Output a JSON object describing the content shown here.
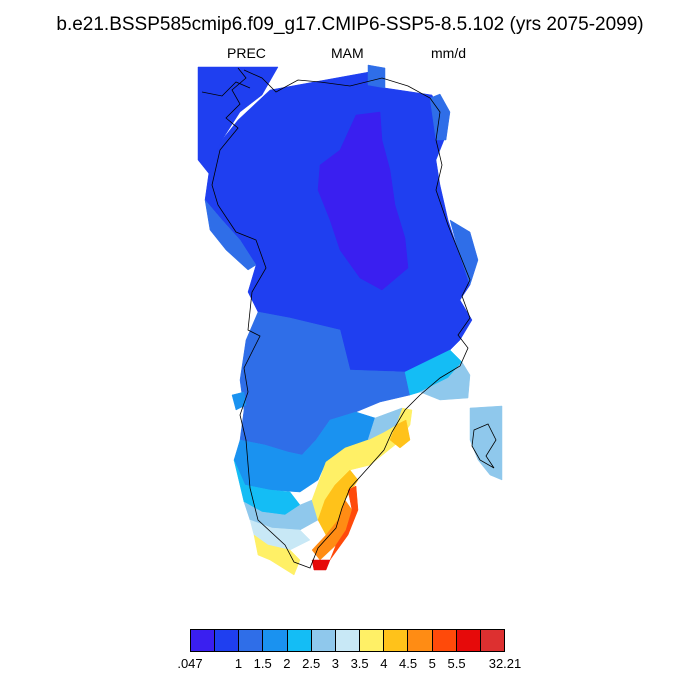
{
  "title": "b.e21.BSSP585cmip6.f09_g17.CMIP6-SSP5-8.5.102 (yrs 2075-2099)",
  "subtitle": {
    "variable": "PREC",
    "season": "MAM",
    "units": "mm/d"
  },
  "colorbar": {
    "colors": [
      "#3a1ff0",
      "#1f3ff0",
      "#2f6ee8",
      "#1a92f0",
      "#14bdf5",
      "#8fc8ec",
      "#c8e8f6",
      "#fff066",
      "#ffc21a",
      "#ff8c14",
      "#ff4a0a",
      "#e60a0a",
      "#dd3030"
    ],
    "labels": [
      ".047",
      "1",
      "1.5",
      "2",
      "2.5",
      "3",
      "3.5",
      "4",
      "4.5",
      "5",
      "5.5",
      "32.21"
    ]
  }
}
